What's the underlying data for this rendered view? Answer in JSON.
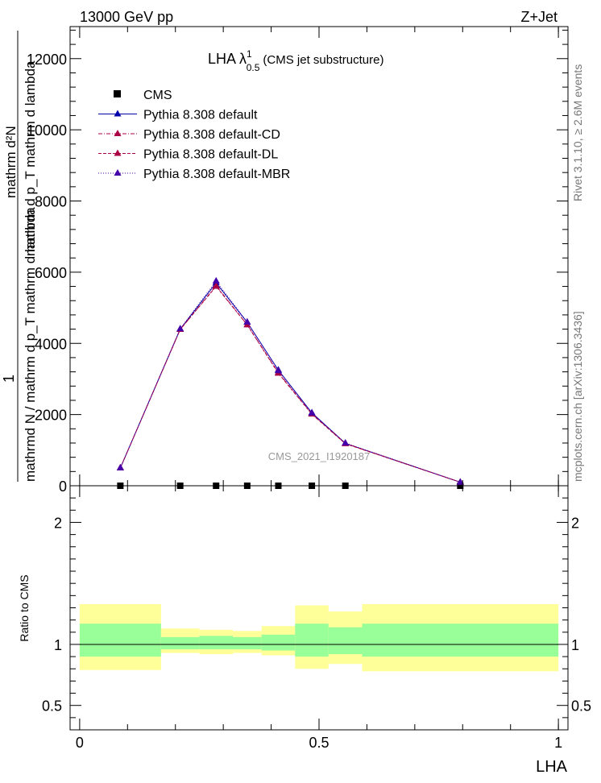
{
  "header": {
    "energy": "13000 GeV pp",
    "process": "Z+Jet",
    "side_label_right_top": "Rivet 3.1.10, ≥ 2.6M events",
    "side_label_right_bottom": "mcplots.cern.ch [arXiv:1306.3436]",
    "watermark": "CMS_2021_I1920187"
  },
  "chart_data": [
    {
      "type": "line",
      "title": "LHA λ",
      "title_sup": "1",
      "title_sub": "0.5",
      "title_suffix": "(CMS jet substructure)",
      "ylabel_frac_numer": "1",
      "ylabel_frac_denom": "mathrmd N / mathrm d p_T mathrm d lambda",
      "ylabel_inner_numer": "mathrm d²N",
      "ylabel_inner_denom": "mathrm d p_T mathrm d lambda",
      "xlim": [
        -0.02,
        1.02
      ],
      "ylim": [
        0,
        12900
      ],
      "yticks": [
        0,
        2000,
        4000,
        6000,
        8000,
        10000,
        12000
      ],
      "yticklabels": [
        "0",
        "2000",
        "4000",
        "6000",
        "8000",
        "10000",
        "12000"
      ],
      "legend_position": "top-left",
      "series": [
        {
          "name": "CMS",
          "style": "data",
          "color": "#000000",
          "x": [
            0.085,
            0.21,
            0.285,
            0.35,
            0.415,
            0.485,
            0.555,
            0.795
          ],
          "y": [
            0,
            0,
            0,
            0,
            0,
            0,
            0,
            0
          ]
        },
        {
          "name": "Pythia 8.308 default",
          "style": "solid",
          "color": "#0000aa",
          "x": [
            0.085,
            0.21,
            0.285,
            0.35,
            0.415,
            0.485,
            0.555,
            0.795
          ],
          "y": [
            500,
            4400,
            5700,
            4590,
            3250,
            2050,
            1190,
            100
          ]
        },
        {
          "name": "Pythia 8.308 default-CD",
          "style": "dashdot",
          "color": "#aa0044",
          "x": [
            0.085,
            0.21,
            0.285,
            0.35,
            0.415,
            0.485,
            0.555,
            0.795
          ],
          "y": [
            500,
            4390,
            5620,
            4520,
            3180,
            2020,
            1190,
            100
          ]
        },
        {
          "name": "Pythia 8.308 default-DL",
          "style": "dashed",
          "color": "#aa0044",
          "x": [
            0.085,
            0.21,
            0.285,
            0.35,
            0.415,
            0.485,
            0.555,
            0.795
          ],
          "y": [
            500,
            4390,
            5600,
            4520,
            3160,
            2010,
            1180,
            100
          ]
        },
        {
          "name": "Pythia 8.308 default-MBR",
          "style": "dotted",
          "color": "#4400aa",
          "x": [
            0.085,
            0.21,
            0.285,
            0.35,
            0.415,
            0.485,
            0.555,
            0.795
          ],
          "y": [
            500,
            4410,
            5750,
            4600,
            3230,
            2040,
            1200,
            100
          ]
        }
      ]
    },
    {
      "type": "area",
      "ylabel": "Ratio to CMS",
      "xlabel": "LHA",
      "xlim": [
        -0.02,
        1.02
      ],
      "ylim": [
        0.3,
        2.3
      ],
      "yticks": [
        0.5,
        1,
        2
      ],
      "yticklabels": [
        "0.5",
        "1",
        "2"
      ],
      "xticks": [
        0,
        0.5,
        1
      ],
      "xticklabels": [
        "0",
        "0.5",
        "1"
      ],
      "bands": {
        "edges": [
          0,
          0.17,
          0.25,
          0.32,
          0.38,
          0.45,
          0.52,
          0.59,
          1.0
        ],
        "inner_lo": [
          0.9,
          0.96,
          0.96,
          0.96,
          0.95,
          0.9,
          0.92,
          0.9
        ],
        "inner_hi": [
          1.17,
          1.06,
          1.07,
          1.06,
          1.08,
          1.17,
          1.14,
          1.17
        ],
        "outer_lo": [
          0.79,
          0.93,
          0.92,
          0.93,
          0.91,
          0.8,
          0.84,
          0.78
        ],
        "outer_hi": [
          1.33,
          1.13,
          1.12,
          1.11,
          1.15,
          1.32,
          1.27,
          1.33
        ],
        "inner_color": "#99ff99",
        "outer_color": "#ffff99"
      },
      "reference_line": 1
    }
  ]
}
